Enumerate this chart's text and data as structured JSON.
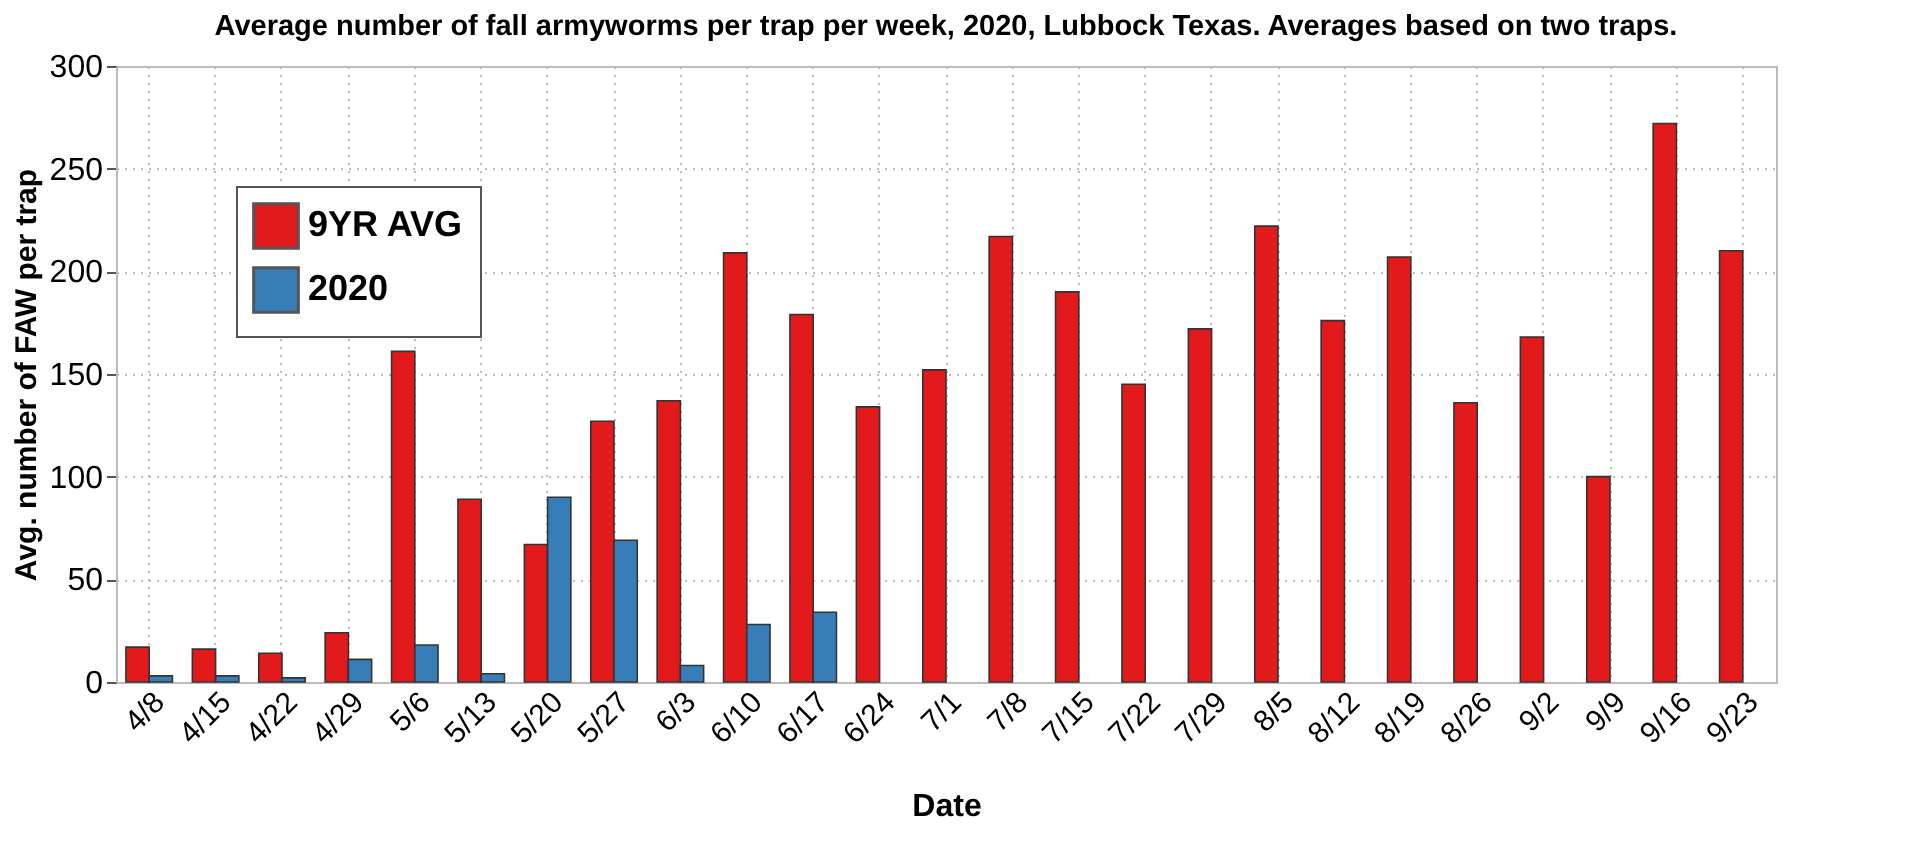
{
  "chart_data": {
    "type": "bar",
    "title": "Average number of fall armyworms per trap per week, 2020, Lubbock Texas. Averages based on two traps.",
    "xlabel": "Date",
    "ylabel": "Avg. number of FAW per trap",
    "categories": [
      "4/8",
      "4/15",
      "4/22",
      "4/29",
      "5/6",
      "5/13",
      "5/20",
      "5/27",
      "6/3",
      "6/10",
      "6/17",
      "6/24",
      "7/1",
      "7/8",
      "7/15",
      "7/22",
      "7/29",
      "8/5",
      "8/12",
      "8/19",
      "8/26",
      "9/2",
      "9/9",
      "9/16",
      "9/23"
    ],
    "series": [
      {
        "name": "9YR AVG",
        "color": "#e31a1c",
        "values": [
          17,
          16,
          14,
          24,
          161,
          89,
          67,
          127,
          137,
          209,
          179,
          134,
          152,
          217,
          190,
          145,
          172,
          222,
          176,
          207,
          136,
          168,
          100,
          272,
          210
        ]
      },
      {
        "name": "2020",
        "color": "#377eb8",
        "values": [
          3,
          3,
          2,
          11,
          18,
          4,
          90,
          69,
          8,
          28,
          34,
          null,
          null,
          null,
          null,
          null,
          null,
          null,
          null,
          null,
          null,
          null,
          null,
          null,
          null
        ]
      }
    ],
    "ylim": [
      0,
      300
    ],
    "yticks": [
      0,
      50,
      100,
      150,
      200,
      250,
      300
    ],
    "grid": true,
    "legend": "top left"
  }
}
